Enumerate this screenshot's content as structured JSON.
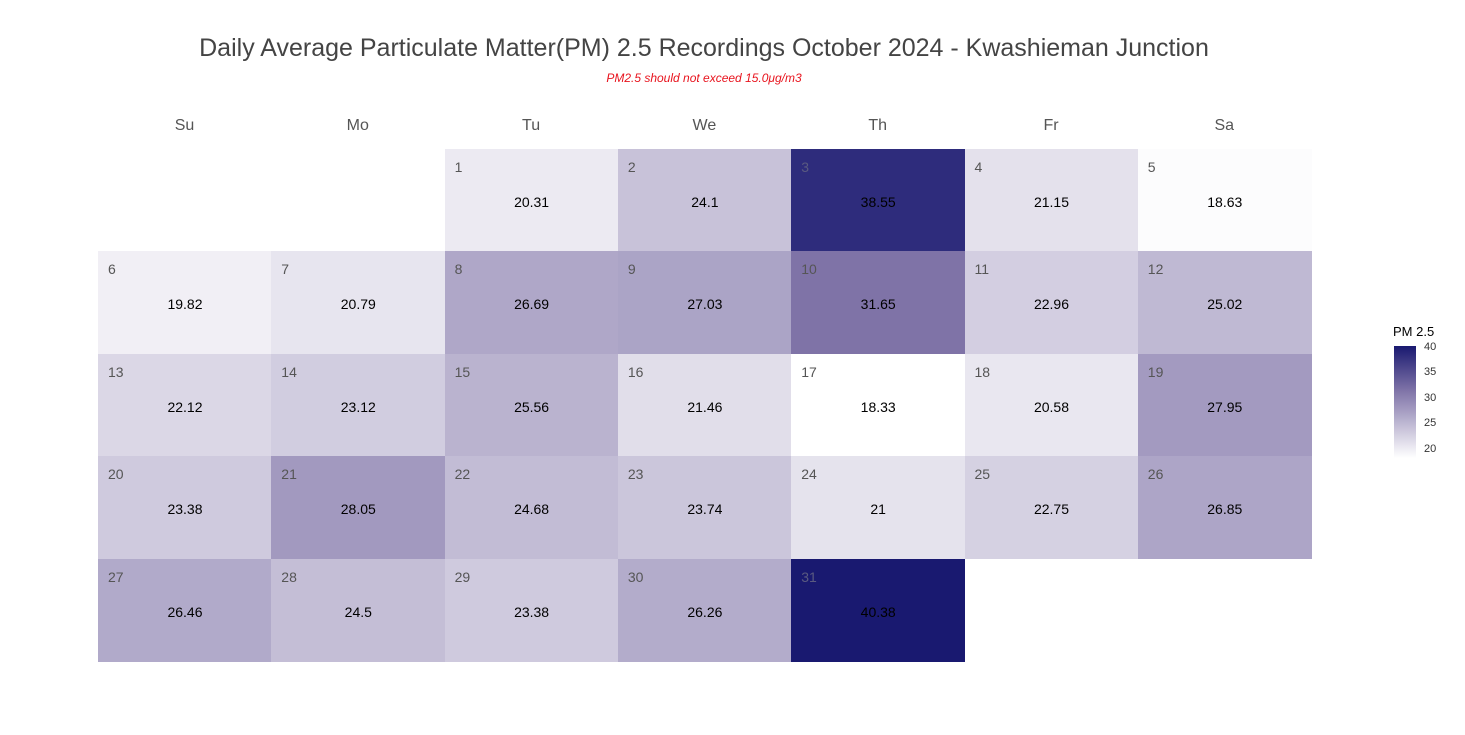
{
  "title": "Daily Average Particulate Matter(PM) 2.5 Recordings October 2024 -  Kwashieman Junction",
  "subtitle": "PM2.5 should not exceed 15.0μg/m3",
  "colors": {
    "subtitle": "#e8141e",
    "scale_low": "#ffffff",
    "scale_high": "#191970",
    "title": "#444444"
  },
  "chart_data": {
    "type": "heatmap",
    "title": "Daily Average Particulate Matter(PM) 2.5 Recordings October 2024 -  Kwashieman Junction",
    "subtitle": "PM2.5 should not exceed 15.0μg/m3",
    "weekdays": [
      "Su",
      "Mo",
      "Tu",
      "We",
      "Th",
      "Fr",
      "Sa"
    ],
    "first_weekday_index": 2,
    "days": [
      1,
      2,
      3,
      4,
      5,
      6,
      7,
      8,
      9,
      10,
      11,
      12,
      13,
      14,
      15,
      16,
      17,
      18,
      19,
      20,
      21,
      22,
      23,
      24,
      25,
      26,
      27,
      28,
      29,
      30,
      31
    ],
    "day_labels": [
      "1",
      "2",
      "3",
      "4",
      "5",
      "6",
      "7",
      "8",
      "9",
      "10",
      "11",
      "12",
      "13",
      "14",
      "15",
      "16",
      "17",
      "18",
      "19",
      "20",
      "21",
      "22",
      "23",
      "24",
      "25",
      "26",
      "27",
      "28",
      "29",
      "30",
      "31"
    ],
    "values": [
      20.31,
      24.1,
      38.55,
      21.15,
      18.63,
      19.82,
      20.79,
      26.69,
      27.03,
      31.65,
      22.96,
      25.02,
      22.12,
      23.12,
      25.56,
      21.46,
      18.33,
      20.58,
      27.95,
      23.38,
      28.05,
      24.68,
      23.74,
      21,
      22.75,
      26.85,
      26.46,
      24.5,
      23.38,
      26.26,
      40.38
    ],
    "value_labels": [
      "20.31",
      "24.1",
      "38.55",
      "21.15",
      "18.63",
      "19.82",
      "20.79",
      "26.69",
      "27.03",
      "31.65",
      "22.96",
      "25.02",
      "22.12",
      "23.12",
      "25.56",
      "21.46",
      "18.33",
      "20.58",
      "27.95",
      "23.38",
      "28.05",
      "24.68",
      "23.74",
      "21",
      "22.75",
      "26.85",
      "26.46",
      "24.5",
      "23.38",
      "26.26",
      "40.38"
    ],
    "legend": {
      "title": "PM 2.5",
      "ticks": [
        40,
        35,
        30,
        25,
        20
      ],
      "tick_labels": [
        "40",
        "35",
        "30",
        "25",
        "20"
      ],
      "range": [
        18.33,
        40.38
      ],
      "position": "right"
    }
  }
}
